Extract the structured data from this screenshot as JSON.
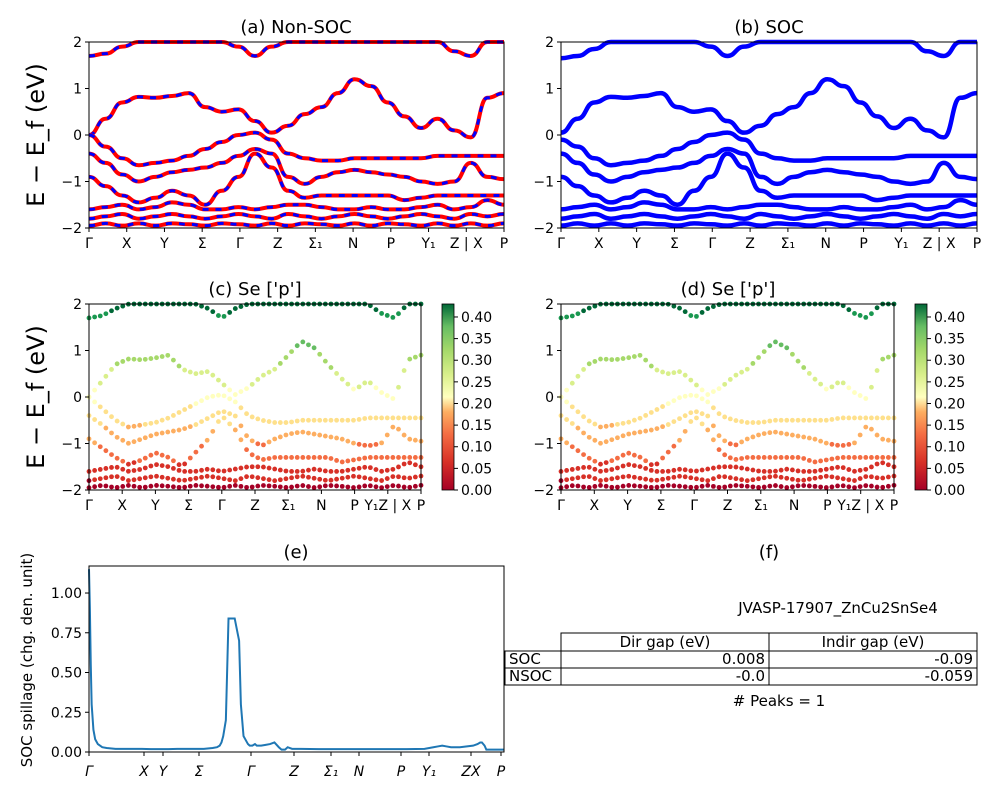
{
  "chart_data": [
    {
      "type": "line",
      "title": "(a) Non-SOC",
      "ylabel": "E − E_f (eV)",
      "ylim": [
        -2,
        2
      ],
      "yticks": [
        "2",
        "1",
        "0",
        "−1",
        "−2"
      ],
      "kpath": [
        "Γ",
        "X",
        "Y",
        "Σ",
        "Γ",
        "Z",
        "Σ₁",
        "N",
        "P",
        "Y₁",
        "Z | X",
        "P"
      ],
      "series": [
        {
          "color": "#ff0000",
          "bands": [
            [
              0.0,
              0.35,
              0.7,
              0.82,
              0.8,
              0.84,
              0.9,
              0.6,
              0.5,
              0.55,
              0.3,
              0.05,
              0.2,
              0.45,
              0.6,
              0.9,
              1.2,
              1.05,
              0.7,
              0.4,
              0.15,
              0.35,
              0.1,
              -0.05,
              0.8,
              0.9
            ],
            [
              0.0,
              -0.25,
              -0.5,
              -0.65,
              -0.6,
              -0.55,
              -0.45,
              -0.3,
              -0.15,
              0.0,
              0.05,
              -0.1,
              -0.4,
              -0.5,
              -0.55,
              -0.55,
              -0.5,
              -0.5,
              -0.5,
              -0.5,
              -0.5,
              -0.45,
              -0.45,
              -0.45,
              -0.45,
              -0.45
            ],
            [
              -0.4,
              -0.6,
              -0.85,
              -1.0,
              -0.9,
              -0.8,
              -0.75,
              -0.7,
              -0.6,
              -0.45,
              -0.3,
              -0.4,
              -0.9,
              -1.05,
              -0.9,
              -0.8,
              -0.75,
              -0.8,
              -0.85,
              -0.9,
              -1.0,
              -1.05,
              -1.0,
              -0.6,
              -0.9,
              -0.95
            ],
            [
              -0.9,
              -1.1,
              -1.3,
              -1.45,
              -1.35,
              -1.2,
              -1.3,
              -1.5,
              -1.2,
              -0.9,
              -0.4,
              -0.7,
              -1.2,
              -1.35,
              -1.3,
              -1.3,
              -1.3,
              -1.3,
              -1.3,
              -1.4,
              -1.35,
              -1.3,
              -1.3,
              -1.3,
              -1.3,
              -1.3
            ],
            [
              -1.6,
              -1.55,
              -1.5,
              -1.6,
              -1.55,
              -1.45,
              -1.5,
              -1.6,
              -1.6,
              -1.55,
              -1.6,
              -1.55,
              -1.5,
              -1.5,
              -1.55,
              -1.6,
              -1.6,
              -1.55,
              -1.6,
              -1.6,
              -1.55,
              -1.5,
              -1.6,
              -1.55,
              -1.4,
              -1.5
            ],
            [
              -1.8,
              -1.75,
              -1.7,
              -1.8,
              -1.75,
              -1.7,
              -1.75,
              -1.8,
              -1.75,
              -1.7,
              -1.75,
              -1.8,
              -1.7,
              -1.75,
              -1.8,
              -1.75,
              -1.7,
              -1.75,
              -1.8,
              -1.75,
              -1.7,
              -1.75,
              -1.8,
              -1.7,
              -1.75,
              -1.7
            ],
            [
              -1.95,
              -1.9,
              -1.95,
              -1.9,
              -1.95,
              -1.9,
              -1.92,
              -1.95,
              -1.9,
              -1.92,
              -1.95,
              -1.9,
              -1.95,
              -1.9,
              -1.92,
              -1.95,
              -1.9,
              -1.95,
              -1.9,
              -1.92,
              -1.95,
              -1.9,
              -1.95,
              -1.9,
              -1.95,
              -1.9
            ],
            [
              1.7,
              1.75,
              1.9,
              2.0,
              2.0,
              2.0,
              2.0,
              2.0,
              2.0,
              1.9,
              1.7,
              1.9,
              2.0,
              2.0,
              2.0,
              2.0,
              2.0,
              2.0,
              2.0,
              2.0,
              2.0,
              2.0,
              1.8,
              1.7,
              2.0,
              2.0
            ]
          ]
        },
        {
          "color": "#0000ff",
          "dashed": true
        }
      ]
    },
    {
      "type": "line",
      "title": "(b) SOC",
      "ylim": [
        -2,
        2
      ],
      "yticks": [
        "2",
        "1",
        "0",
        "−1",
        "−2"
      ],
      "kpath": [
        "Γ",
        "X",
        "Y",
        "Σ",
        "Γ",
        "Z",
        "Σ₁",
        "N",
        "P",
        "Y₁",
        "Z | X",
        "P"
      ],
      "series": [
        {
          "color": "#0000ff",
          "bands": [
            [
              0.05,
              0.35,
              0.7,
              0.82,
              0.8,
              0.84,
              0.9,
              0.6,
              0.5,
              0.55,
              0.3,
              0.05,
              0.2,
              0.45,
              0.6,
              0.9,
              1.2,
              1.05,
              0.7,
              0.4,
              0.15,
              0.35,
              0.1,
              -0.05,
              0.8,
              0.9
            ],
            [
              -0.1,
              -0.25,
              -0.5,
              -0.65,
              -0.6,
              -0.55,
              -0.45,
              -0.3,
              -0.15,
              0.0,
              0.05,
              -0.1,
              -0.4,
              -0.5,
              -0.55,
              -0.55,
              -0.5,
              -0.5,
              -0.5,
              -0.5,
              -0.5,
              -0.45,
              -0.45,
              -0.45,
              -0.45,
              -0.45
            ],
            [
              -0.4,
              -0.6,
              -0.85,
              -1.0,
              -0.9,
              -0.8,
              -0.75,
              -0.7,
              -0.6,
              -0.45,
              -0.3,
              -0.4,
              -0.9,
              -1.05,
              -0.9,
              -0.8,
              -0.75,
              -0.8,
              -0.85,
              -0.9,
              -1.0,
              -1.05,
              -1.0,
              -0.6,
              -0.9,
              -0.95
            ],
            [
              -0.9,
              -1.1,
              -1.3,
              -1.45,
              -1.35,
              -1.2,
              -1.3,
              -1.5,
              -1.2,
              -0.9,
              -0.4,
              -0.7,
              -1.2,
              -1.35,
              -1.3,
              -1.3,
              -1.3,
              -1.3,
              -1.3,
              -1.4,
              -1.35,
              -1.3,
              -1.3,
              -1.3,
              -1.3,
              -1.3
            ],
            [
              -1.6,
              -1.55,
              -1.5,
              -1.6,
              -1.55,
              -1.45,
              -1.5,
              -1.6,
              -1.6,
              -1.55,
              -1.6,
              -1.55,
              -1.5,
              -1.5,
              -1.55,
              -1.6,
              -1.6,
              -1.55,
              -1.6,
              -1.6,
              -1.55,
              -1.5,
              -1.6,
              -1.55,
              -1.4,
              -1.5
            ],
            [
              -1.8,
              -1.75,
              -1.7,
              -1.8,
              -1.75,
              -1.7,
              -1.75,
              -1.8,
              -1.75,
              -1.7,
              -1.75,
              -1.8,
              -1.7,
              -1.75,
              -1.8,
              -1.75,
              -1.7,
              -1.75,
              -1.8,
              -1.75,
              -1.7,
              -1.75,
              -1.8,
              -1.7,
              -1.75,
              -1.7
            ],
            [
              -1.95,
              -1.9,
              -1.95,
              -1.9,
              -1.95,
              -1.9,
              -1.92,
              -1.95,
              -1.9,
              -1.92,
              -1.95,
              -1.9,
              -1.95,
              -1.9,
              -1.92,
              -1.95,
              -1.9,
              -1.95,
              -1.9,
              -1.92,
              -1.95,
              -1.9,
              -1.95,
              -1.9,
              -1.95,
              -1.9
            ],
            [
              1.65,
              1.7,
              1.85,
              2.0,
              2.0,
              2.0,
              2.0,
              2.0,
              2.0,
              1.9,
              1.7,
              1.9,
              2.0,
              2.0,
              2.0,
              2.0,
              2.0,
              2.0,
              2.0,
              2.0,
              2.0,
              2.0,
              1.8,
              1.7,
              2.0,
              2.0
            ]
          ]
        }
      ]
    },
    {
      "type": "scatter",
      "title": "(c)  Se ['p']",
      "ylabel": "E − E_f (eV)",
      "ylim": [
        -2,
        2
      ],
      "yticks": [
        "2",
        "1",
        "0",
        "−1",
        "−2"
      ],
      "kpath": [
        "Γ",
        "X",
        "Y",
        "Σ",
        "Γ",
        "Z",
        "Σ₁",
        "N",
        "P",
        "Y₁Z | X",
        "P"
      ],
      "colorbar": {
        "min": 0.0,
        "max": 0.43,
        "ticks": [
          "0.40",
          "0.35",
          "0.30",
          "0.25",
          "0.20",
          "0.15",
          "0.10",
          "0.05",
          "0.00"
        ],
        "colormap": "RdYlGn"
      }
    },
    {
      "type": "scatter",
      "title": "(d) Se ['p']",
      "ylim": [
        -2,
        2
      ],
      "yticks": [
        "2",
        "1",
        "0",
        "−1",
        "−2"
      ],
      "kpath": [
        "Γ",
        "X",
        "Y",
        "Σ",
        "Γ",
        "Z",
        "Σ₁",
        "N",
        "P",
        "Y₁Z | X",
        "P"
      ],
      "colorbar": {
        "min": 0.0,
        "max": 0.43,
        "ticks": [
          "0.40",
          "0.35",
          "0.30",
          "0.25",
          "0.20",
          "0.15",
          "0.10",
          "0.05",
          "0.00"
        ],
        "colormap": "RdYlGn"
      }
    },
    {
      "type": "line",
      "title": "(e)",
      "ylabel": "SOC spillage (chg. den. unit)",
      "ylim": [
        0,
        1.17
      ],
      "yticks": [
        "1.00",
        "0.75",
        "0.50",
        "0.25",
        "0.00"
      ],
      "kpath": [
        "Γ",
        "X",
        "Y",
        "Σ",
        "Γ",
        "Z",
        "Σ₁",
        "N",
        "P",
        "Y₁",
        "ZX",
        "P"
      ],
      "color": "#1f77b4",
      "x": [
        0,
        1,
        2,
        3,
        5,
        7,
        10,
        15,
        20,
        30,
        40,
        50,
        60,
        70,
        80,
        90,
        100,
        110,
        120,
        130,
        140,
        145,
        148,
        150,
        152,
        155,
        158,
        165,
        170,
        172,
        175,
        180,
        182,
        185,
        188,
        190,
        195,
        200,
        205,
        210,
        215,
        218,
        220,
        222,
        225,
        230,
        240,
        260,
        280,
        300,
        320,
        340,
        360,
        380,
        390,
        395,
        400,
        405,
        410,
        420,
        435,
        440,
        443,
        445,
        448,
        450,
        455,
        460,
        470
      ],
      "y": [
        1.15,
        0.9,
        0.55,
        0.3,
        0.14,
        0.08,
        0.05,
        0.03,
        0.025,
        0.02,
        0.02,
        0.02,
        0.02,
        0.018,
        0.018,
        0.018,
        0.02,
        0.02,
        0.02,
        0.02,
        0.025,
        0.03,
        0.04,
        0.06,
        0.1,
        0.2,
        0.84,
        0.84,
        0.7,
        0.3,
        0.1,
        0.05,
        0.04,
        0.04,
        0.05,
        0.04,
        0.04,
        0.045,
        0.05,
        0.06,
        0.03,
        0.015,
        0.015,
        0.015,
        0.03,
        0.02,
        0.02,
        0.018,
        0.018,
        0.018,
        0.018,
        0.018,
        0.018,
        0.02,
        0.03,
        0.035,
        0.04,
        0.035,
        0.03,
        0.03,
        0.04,
        0.05,
        0.06,
        0.06,
        0.04,
        0.015,
        0.015,
        0.015,
        0.015
      ]
    },
    {
      "type": "table",
      "title": "(f)",
      "name": "JVASP-17907_ZnCu2SnSe4",
      "columns": [
        "",
        "Dir gap (eV)",
        "Indir gap (eV)"
      ],
      "rows": [
        [
          "SOC",
          "0.008",
          "-0.09"
        ],
        [
          "NSOC",
          "-0.0",
          "-0.059"
        ]
      ],
      "footer": "# Peaks = 1"
    }
  ]
}
